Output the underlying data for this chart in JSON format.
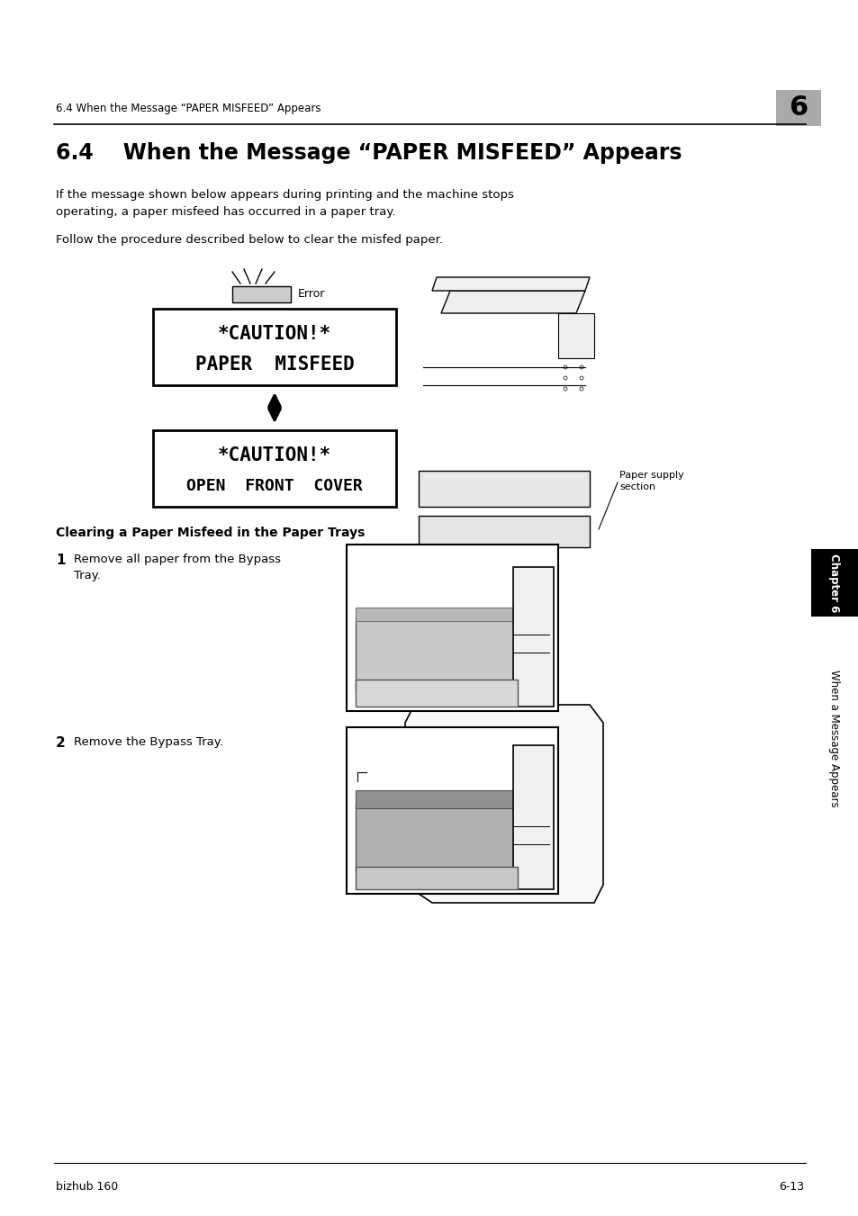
{
  "page_bg": "#ffffff",
  "header_text": "6.4 When the Message “PAPER MISFEED” Appears",
  "header_number": "6",
  "header_number_bg": "#aaaaaa",
  "section_title": "6.4    When the Message “PAPER MISFEED” Appears",
  "body_text1": "If the message shown below appears during printing and the machine stops\noperating, a paper misfeed has occurred in a paper tray.",
  "body_text2": "Follow the procedure described below to clear the misfed paper.",
  "error_label": "Error",
  "error_indicator_color": "#cccccc",
  "paper_supply_label": "Paper supply\nsection",
  "clearing_title": "Clearing a Paper Misfeed in the Paper Trays",
  "step1_num": "1",
  "step1_text": "Remove all paper from the Bypass\nTray.",
  "step2_num": "2",
  "step2_text": "Remove the Bypass Tray.",
  "footer_left": "bizhub 160",
  "footer_right": "6-13",
  "sidebar_text": "When a Message Appears",
  "sidebar_chapter": "Chapter 6",
  "sidebar_bg": "#1a1a1a",
  "chapter_tab_bg": "#1a1a1a"
}
